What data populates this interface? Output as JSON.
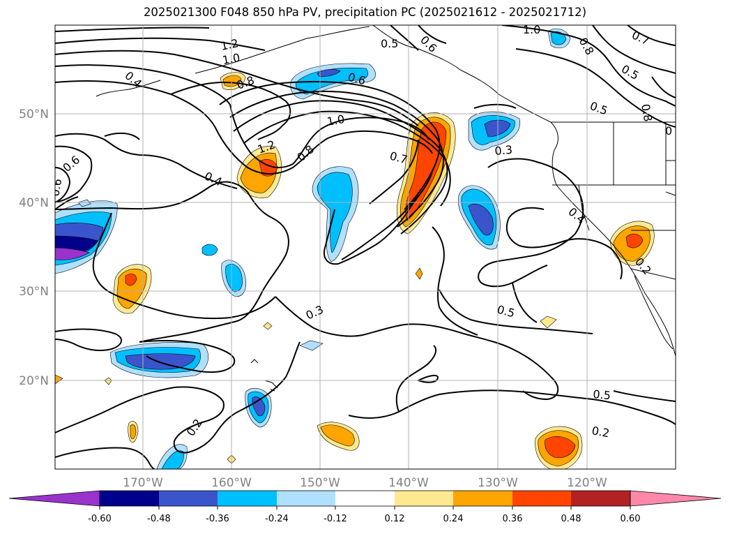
{
  "title": "2025021300 F048 850 hPa PV, precipitation PC (2025021612 - 2025021712)",
  "map": {
    "lon_ticks": [
      "170°W",
      "160°W",
      "150°W",
      "140°W",
      "130°W",
      "120°W"
    ],
    "lat_ticks": [
      "50°N",
      "40°N",
      "30°N",
      "20°N"
    ],
    "gridlines": true
  },
  "contour_labels": [
    "1.2",
    "1.0",
    "0.4",
    "0.8",
    "0.5",
    "0.6",
    "0.6",
    "1.0",
    "0.8",
    "0.7",
    "0.5",
    "0.8",
    "0.6",
    "1.0",
    "1.2",
    "0.8",
    "0.4",
    "0.7",
    "0.3",
    "0.5",
    "0.6",
    "0.4",
    "0.3",
    "0.5",
    "0.2",
    "0.5",
    "0.2",
    "0.2",
    "0"
  ],
  "colorbar": {
    "tick_labels": [
      "-0.60",
      "-0.48",
      "-0.36",
      "-0.24",
      "-0.12",
      "0.12",
      "0.24",
      "0.36",
      "0.48",
      "0.60"
    ],
    "colors": [
      "#9933cc",
      "#00008b",
      "#3a55cc",
      "#00bfff",
      "#b0e0ff",
      "#ffffff",
      "#ffe990",
      "#ffa500",
      "#ff4500",
      "#b22222",
      "#ff88aa"
    ],
    "extend": "both"
  }
}
